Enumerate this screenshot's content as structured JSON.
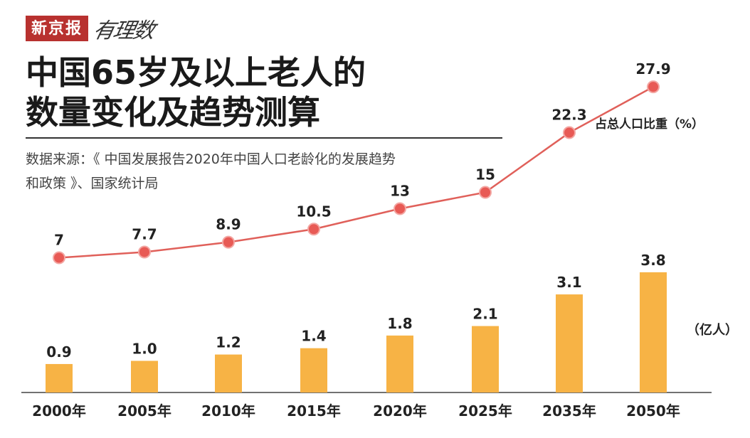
{
  "brand": {
    "name": "新京报",
    "sub": "有理数"
  },
  "title": [
    "中国65岁及以上老人的",
    "数量变化及趋势测算"
  ],
  "source": [
    "数据来源：《 中国发展报告2020年中国人口老龄化的发展趋势",
    "和政策 》、国家统计局"
  ],
  "units": {
    "line": "占总人口比重（%）",
    "bar": "（亿人）"
  },
  "colors": {
    "bar": "#f7b345",
    "line": "#e0605a",
    "point": "#e85a55",
    "brand": "#b8312f"
  },
  "chart_data": {
    "type": "bar+line",
    "categories": [
      "2000年",
      "2005年",
      "2010年",
      "2015年",
      "2020年",
      "2025年",
      "2035年",
      "2050年"
    ],
    "series": [
      {
        "name": "（亿人）",
        "type": "bar",
        "values": [
          0.9,
          1.0,
          1.2,
          1.4,
          1.8,
          2.1,
          3.1,
          3.8
        ]
      },
      {
        "name": "占总人口比重（%）",
        "type": "line",
        "values": [
          7,
          7.7,
          8.9,
          10.5,
          13,
          15,
          22.3,
          27.9
        ]
      }
    ],
    "value_labels_bar": [
      "0.9",
      "1.0",
      "1.2",
      "1.4",
      "1.8",
      "2.1",
      "3.1",
      "3.8"
    ],
    "value_labels_line": [
      "7",
      "7.7",
      "8.9",
      "10.5",
      "13",
      "15",
      "22.3",
      "27.9"
    ]
  }
}
